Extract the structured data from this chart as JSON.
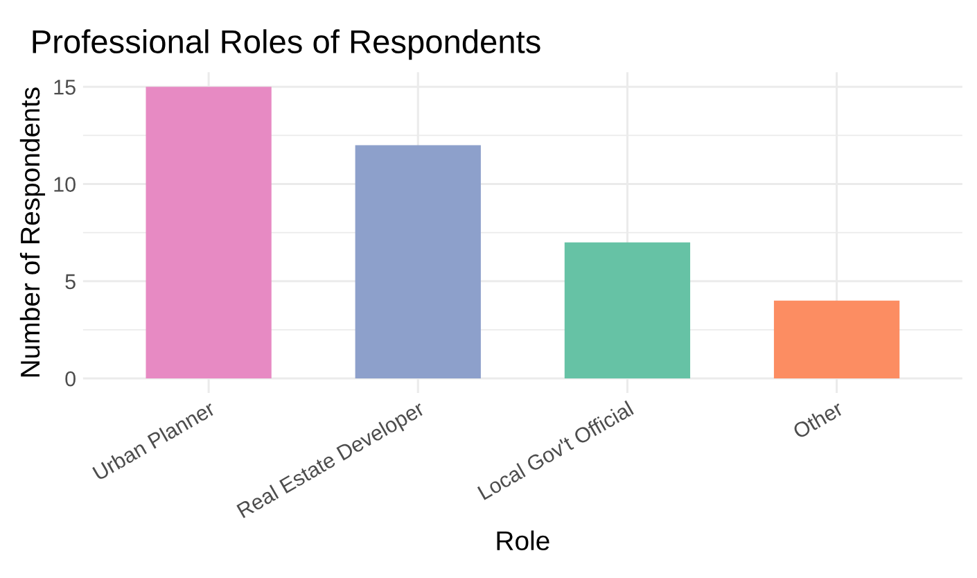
{
  "chart_data": {
    "type": "bar",
    "title": "Professional Roles of Respondents",
    "xlabel": "Role",
    "ylabel": "Number of Respondents",
    "categories": [
      "Urban Planner",
      "Real Estate Developer",
      "Local Gov't Official",
      "Other"
    ],
    "values": [
      15,
      12,
      7,
      4
    ],
    "colors": [
      "#e78ac3",
      "#8da0cb",
      "#66c2a5",
      "#fc8d62"
    ],
    "ylim": [
      -0.75,
      15.75
    ],
    "yticks": [
      0,
      {
        "value": 2.5,
        "label": null
      },
      5,
      {
        "value": 7.5,
        "label": null
      },
      10,
      {
        "value": 12.5,
        "label": null
      },
      15
    ],
    "grid": true,
    "legend": false
  }
}
